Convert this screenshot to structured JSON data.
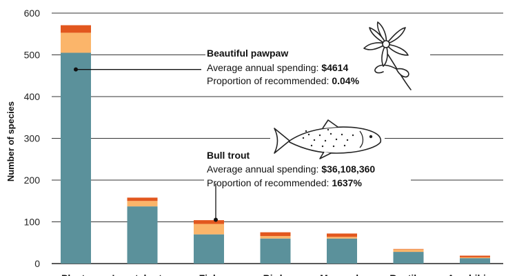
{
  "chart_data": {
    "type": "bar",
    "stacked": true,
    "ylabel": "Number of species",
    "ylim": [
      0,
      600
    ],
    "yticks": [
      0,
      100,
      200,
      300,
      400,
      500,
      600
    ],
    "grid": true,
    "categories": [
      "Plants",
      "Invertebrates",
      "Fish",
      "Birds",
      "Mammals",
      "Reptiles",
      "Amphibians"
    ],
    "series": [
      {
        "color": "#5b919b",
        "values": [
          505,
          137,
          70,
          60,
          60,
          28,
          13
        ]
      },
      {
        "color": "#fbb56a",
        "values": [
          48,
          13,
          25,
          6,
          4,
          6,
          2
        ]
      },
      {
        "color": "#e2571e",
        "values": [
          18,
          8,
          9,
          9,
          8,
          1,
          4
        ]
      }
    ],
    "annotations": [
      {
        "title": "Beautiful pawpaw",
        "category": "Plants",
        "y": 465,
        "spending_label": "Average annual spending: ",
        "spending_value": "$4614",
        "proportion_label": "Proportion of recommended: ",
        "proportion_value": "0.04%",
        "illustration": "pawpaw-flower-illustration"
      },
      {
        "title": "Bull trout",
        "category": "Fish",
        "y": 105,
        "spending_label": "Average annual spending: ",
        "spending_value": "$36,108,360",
        "proportion_label": "Proportion of recommended: ",
        "proportion_value": "1637%",
        "illustration": "trout-fish-illustration"
      }
    ]
  }
}
